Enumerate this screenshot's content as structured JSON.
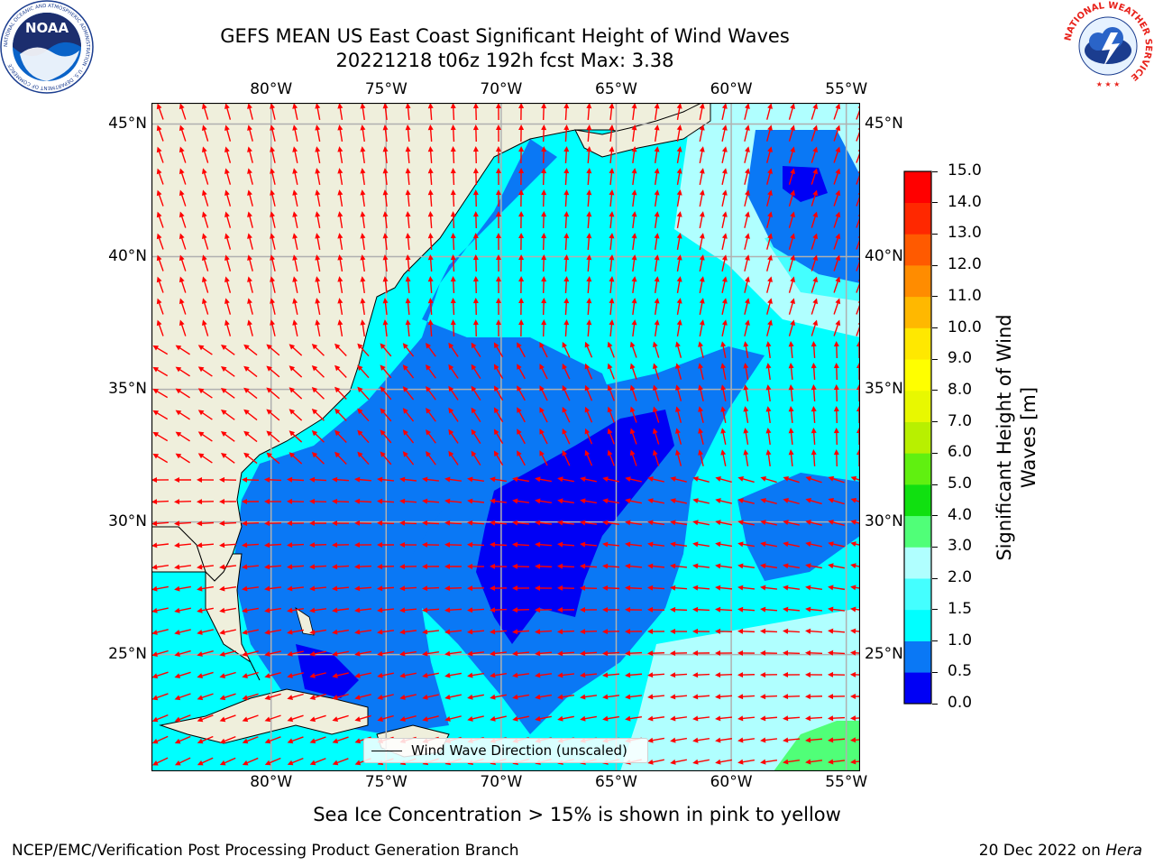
{
  "header": {
    "title_line1": "GEFS MEAN US East Coast Significant Height of Wind Waves",
    "title_line2": "20221218 t06z 192h fcst   Max: 3.38"
  },
  "logos": {
    "noara_text": "NOAA",
    "noaa_ring_text": "NATIONAL OCEANIC AND ATMOSPHERIC ADMINISTRATION · U.S. DEPARTMENT OF COMMERCE",
    "nws_ring_text": "NATIONAL WEATHER SERVICE"
  },
  "map": {
    "lon_labels": [
      "80°W",
      "75°W",
      "70°W",
      "65°W",
      "60°W",
      "55°W"
    ],
    "lat_labels": [
      "45°N",
      "40°N",
      "35°N",
      "30°N",
      "25°N"
    ],
    "legend_label": "Wind Wave Direction (unscaled)",
    "colors": {
      "land": "#efefdc",
      "grid": "#b0b0b0",
      "arrow": "#ff0000",
      "deep_blue": "#0000f5",
      "blue": "#0a78f5",
      "cyan": "#00ffff",
      "light_cyan": "#44ffff",
      "pale_cyan": "#b0ffff",
      "green": "#50ff78"
    }
  },
  "colorbar": {
    "label": "Significant Height of Wind Waves [m]",
    "ticks": [
      "0.0",
      "0.5",
      "1.0",
      "1.5",
      "2.0",
      "3.0",
      "4.0",
      "5.0",
      "6.0",
      "7.0",
      "8.0",
      "9.0",
      "10.0",
      "11.0",
      "12.0",
      "13.0",
      "14.0",
      "15.0"
    ],
    "colors": [
      "#0000f5",
      "#0a78f5",
      "#00ffff",
      "#44ffff",
      "#b0ffff",
      "#50ff78",
      "#10e010",
      "#60f010",
      "#b8f000",
      "#e8f800",
      "#ffff00",
      "#ffe800",
      "#ffb800",
      "#ff8c00",
      "#ff5a00",
      "#ff2800",
      "#ff0000"
    ]
  },
  "footer": {
    "sea_ice_note": "Sea Ice Concentration > 15% is shown in pink to yellow",
    "branch": "NCEP/EMC/Verification Post Processing Product Generation Branch",
    "date": "20 Dec 2022 on",
    "host": "Hera"
  }
}
